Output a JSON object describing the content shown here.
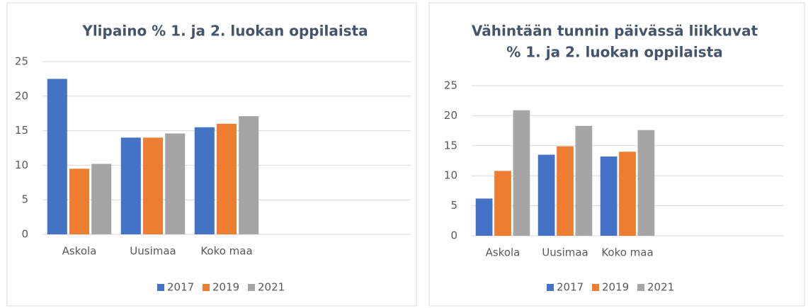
{
  "chart_data": [
    {
      "type": "bar",
      "title": [
        "Ylipaino % 1. ja 2. luokan oppilaista"
      ],
      "categories": [
        "Askola",
        "Uusimaa",
        "Koko maa",
        null,
        null
      ],
      "series": [
        {
          "name": "2017",
          "color": "#4472c4",
          "values": [
            22.5,
            14.0,
            15.5,
            null,
            null
          ]
        },
        {
          "name": "2019",
          "color": "#ed7d31",
          "values": [
            9.5,
            14.0,
            16.0,
            null,
            null
          ]
        },
        {
          "name": "2021",
          "color": "#a5a5a5",
          "values": [
            10.2,
            14.6,
            17.1,
            null,
            null
          ]
        }
      ],
      "ylim": [
        0,
        25
      ],
      "yticks": [
        0,
        5,
        10,
        15,
        20,
        25
      ],
      "grid": true,
      "legend": "bottom"
    },
    {
      "type": "bar",
      "title": [
        "Vähintään tunnin päivässä liikkuvat",
        "% 1. ja 2. luokan oppilaista"
      ],
      "categories": [
        "Askola",
        "Uusimaa",
        "Koko maa",
        null,
        null
      ],
      "series": [
        {
          "name": "2017",
          "color": "#4472c4",
          "values": [
            6.2,
            13.5,
            13.2,
            null,
            null
          ]
        },
        {
          "name": "2019",
          "color": "#ed7d31",
          "values": [
            10.8,
            14.9,
            14.0,
            null,
            null
          ]
        },
        {
          "name": "2021",
          "color": "#a5a5a5",
          "values": [
            20.9,
            18.3,
            17.6,
            null,
            null
          ]
        }
      ],
      "ylim": [
        0,
        25
      ],
      "yticks": [
        0,
        5,
        10,
        15,
        20,
        25
      ],
      "grid": true,
      "legend": "bottom"
    }
  ]
}
